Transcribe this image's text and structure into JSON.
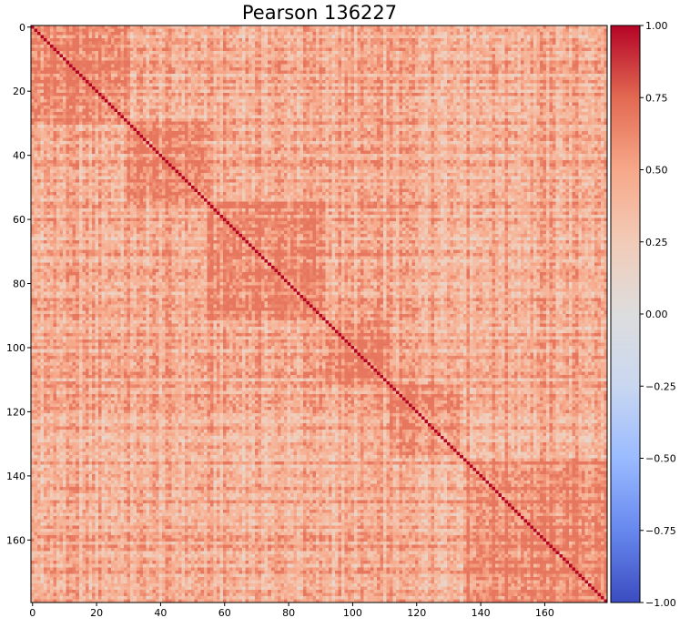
{
  "chart_data": {
    "type": "heatmap",
    "title": "Pearson 136227",
    "xlabel": "",
    "ylabel": "",
    "n": 180,
    "xlim": [
      0,
      179
    ],
    "ylim": [
      179,
      0
    ],
    "x_ticks": [
      "0",
      "20",
      "40",
      "60",
      "80",
      "100",
      "120",
      "140",
      "160"
    ],
    "y_ticks": [
      "0",
      "20",
      "40",
      "60",
      "80",
      "100",
      "120",
      "140",
      "160"
    ],
    "colormap": "coolwarm",
    "colorbar": {
      "min": -1.0,
      "max": 1.0,
      "ticks": [
        "1.00",
        "0.75",
        "0.50",
        "0.25",
        "0.00",
        "−0.25",
        "−0.50",
        "−0.75",
        "−1.00"
      ],
      "colors": [
        "#3b4cc0",
        "#6788ee",
        "#9abbff",
        "#c9d7f0",
        "#dddddd",
        "#f2cbb7",
        "#f7a889",
        "#e26952",
        "#b40426"
      ]
    },
    "diagonal_value": 1.0,
    "typical_offdiagonal_range": [
      -0.1,
      0.7
    ],
    "grid": false
  }
}
